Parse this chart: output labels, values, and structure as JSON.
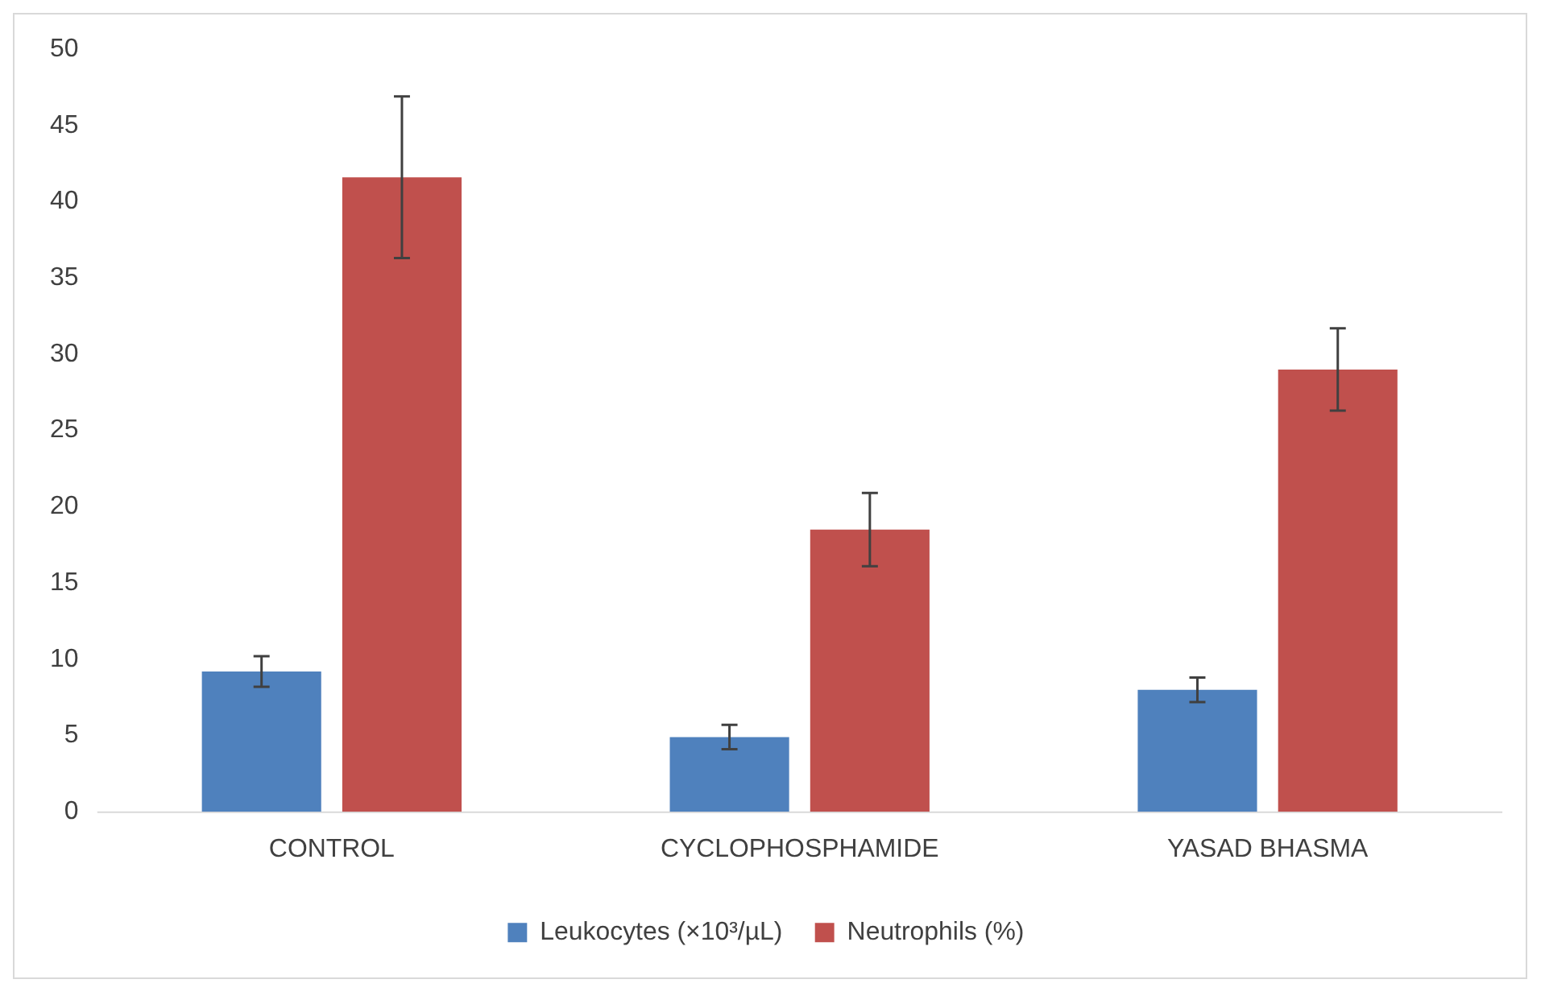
{
  "chart_data": {
    "type": "bar",
    "categories": [
      "CONTROL",
      "CYCLOPHOSPHAMIDE",
      "YASAD BHASMA"
    ],
    "series": [
      {
        "name": "Leukocytes (×10³/µL)",
        "color": "#4f81bd",
        "values": [
          9.2,
          4.9,
          8.0
        ],
        "errors": [
          1.0,
          0.8,
          0.8
        ]
      },
      {
        "name": "Neutrophils (%)",
        "color": "#c0504d",
        "values": [
          41.6,
          18.5,
          29.0
        ],
        "errors": [
          5.3,
          2.4,
          2.7
        ]
      }
    ],
    "ylim": [
      0,
      50
    ],
    "yticks": [
      0,
      5,
      10,
      15,
      20,
      25,
      30,
      35,
      40,
      45,
      50
    ],
    "grid": false,
    "legend": "bottom"
  }
}
